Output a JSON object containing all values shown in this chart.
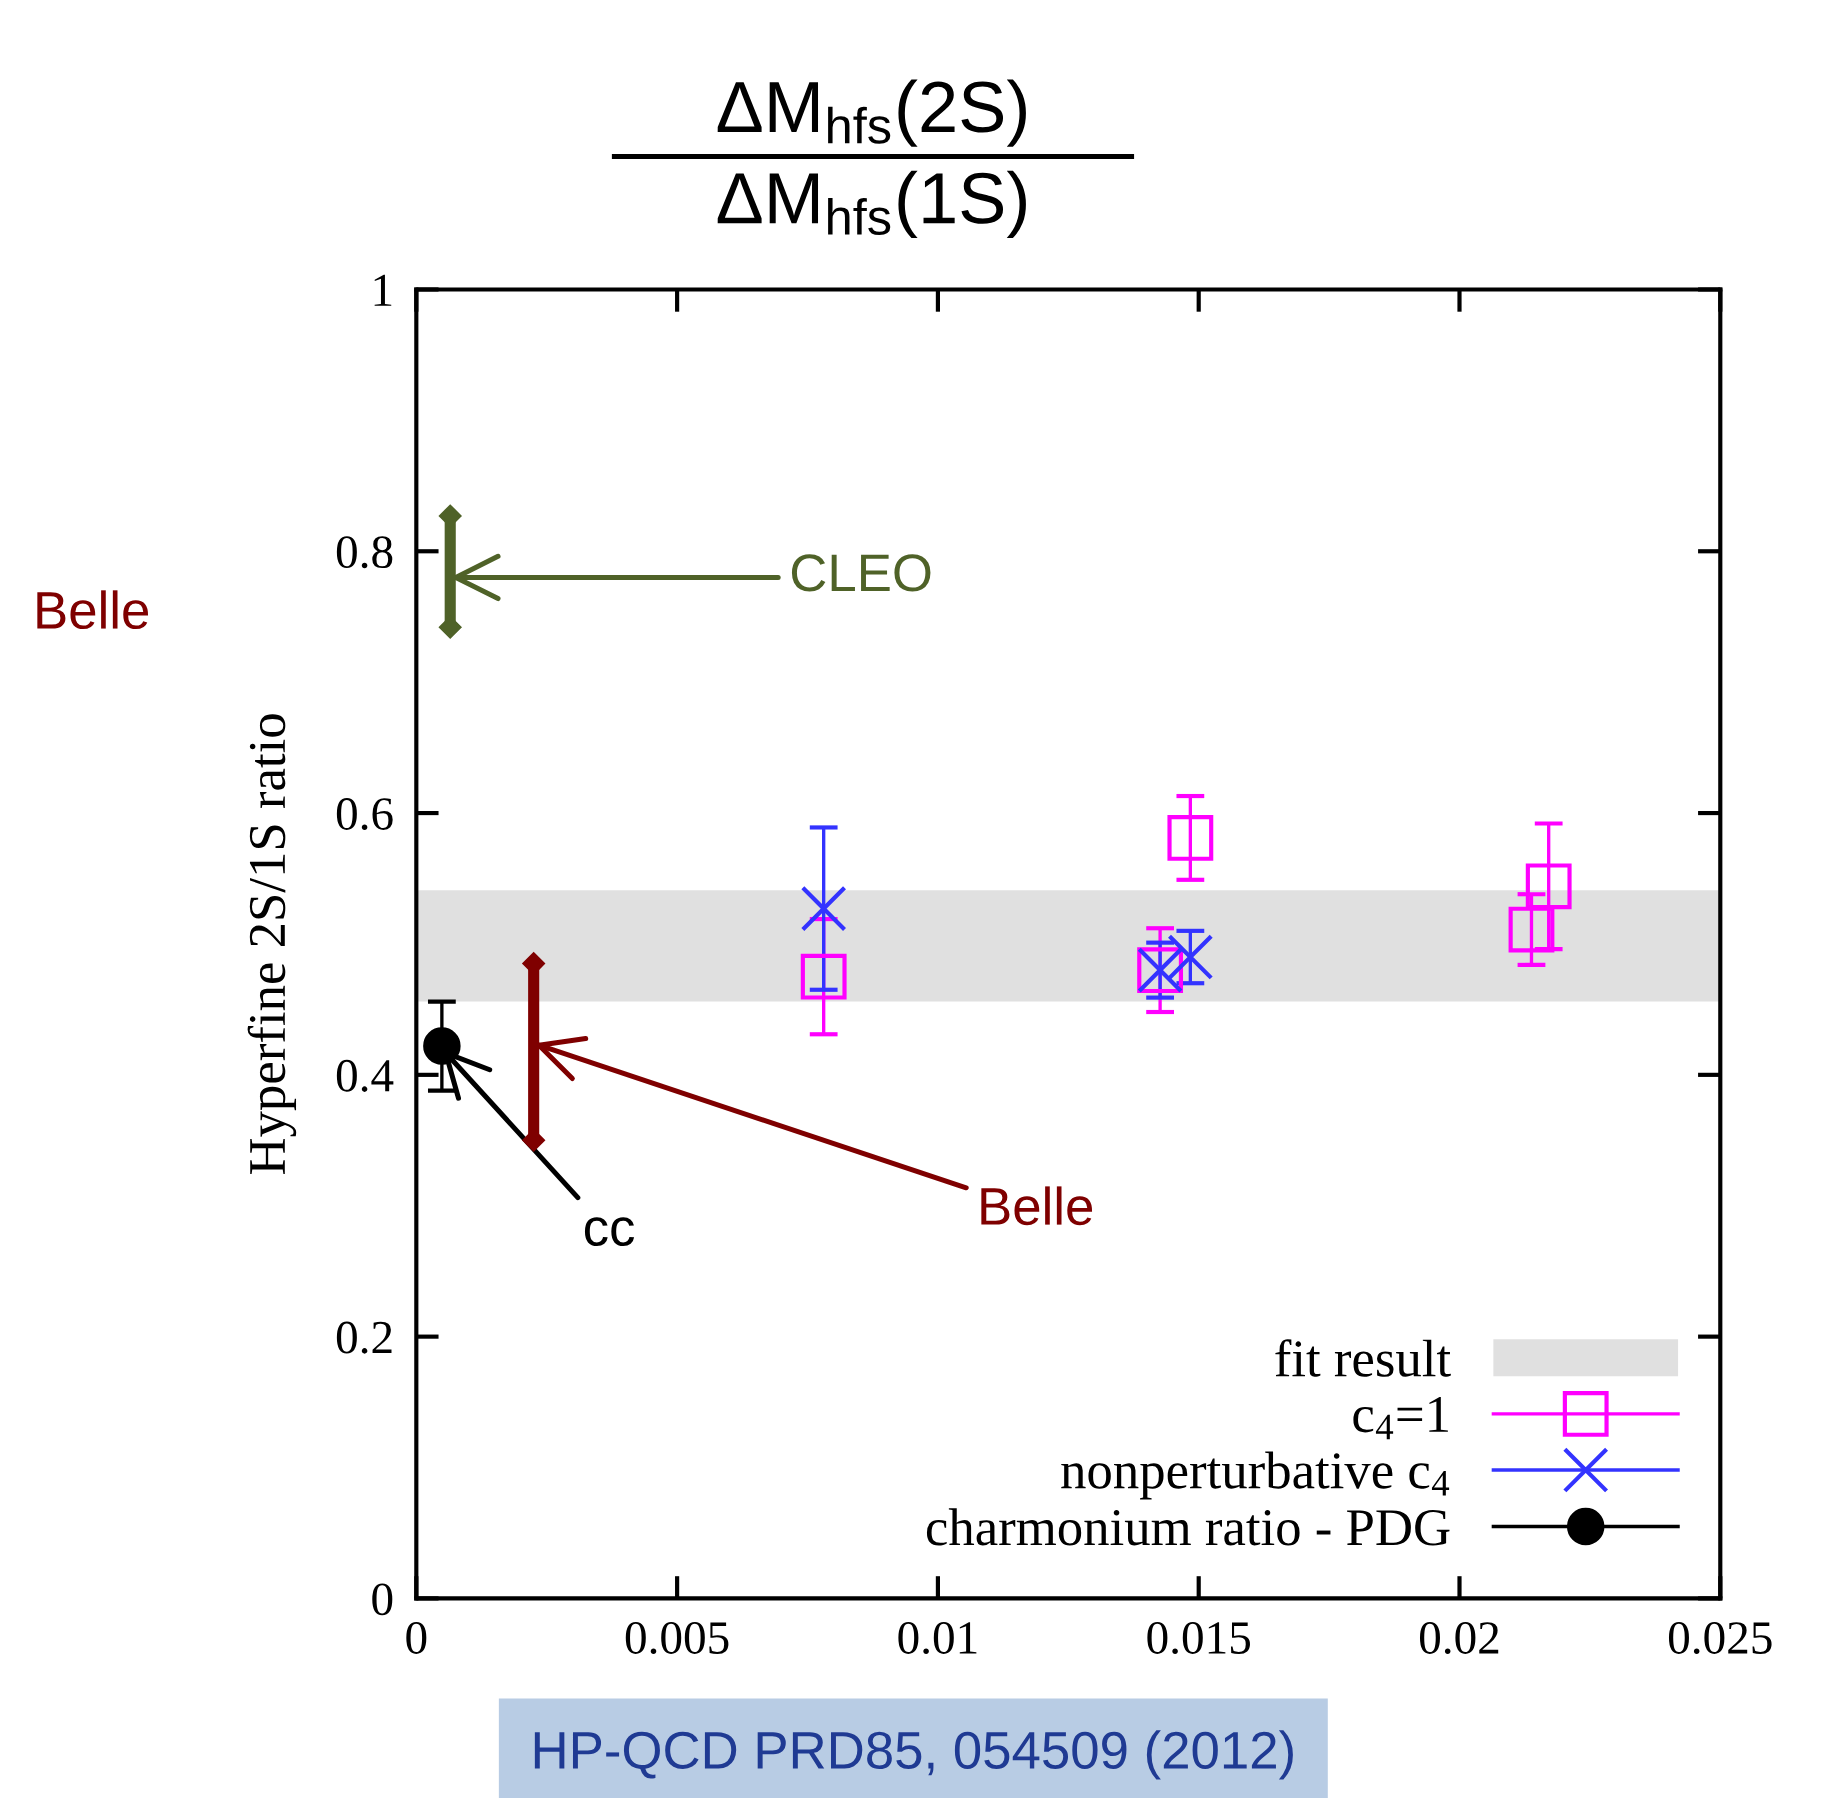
{
  "chart_data": {
    "type": "scatter",
    "title": "ΔM$_{hfs}$(2S)\nΔM$_{hfs}$(1S)",
    "ylabel": "Hyperfine 2S/1S ratio",
    "xlim": [
      0,
      0.025
    ],
    "xticks": [
      0,
      0.005,
      0.01,
      0.015,
      0.02,
      0.025
    ],
    "ylim": [
      0,
      1
    ],
    "yticks": [
      0,
      0.2,
      0.4,
      0.6,
      0.8,
      1
    ],
    "grid": false,
    "legend": "bottom right",
    "bands": [
      {
        "axis": "y",
        "from": 0.456,
        "to": 0.541,
        "label": "fit result",
        "color": "#e0e0e0"
      }
    ],
    "series": [
      {
        "name": "c$_{4}$=1",
        "color": "#ff00ff",
        "marker": "square",
        "x": [
          0.00781,
          0.01426,
          0.01484,
          0.02138,
          0.02171
        ],
        "values": [
          0.475,
          0.48,
          0.581,
          0.511,
          0.544
        ],
        "errors": [
          0.044,
          0.032,
          0.032,
          0.027,
          0.048
        ]
      },
      {
        "name": "nonperturbative c$_{4}$",
        "color": "#3333ff",
        "marker": "cross",
        "x": [
          0.00781,
          0.01426,
          0.01484
        ],
        "values": [
          0.527,
          0.48,
          0.49
        ],
        "errors": [
          0.062,
          0.021,
          0.02
        ]
      },
      {
        "name": "charmonium ratio - PDG",
        "color": "#000000",
        "marker": "circle",
        "x": [
          0.00049
        ],
        "values": [
          0.422
        ],
        "errors": [
          0.034
        ]
      },
      {
        "type": "line",
        "color": "#4f6228",
        "marker": "diamond",
        "x": [
          0.00065,
          0.00065
        ],
        "values": [
          0.742,
          0.827
        ]
      },
      {
        "type": "line",
        "color": "#7f0000",
        "marker": "diamond",
        "x": [
          0.00225,
          0.00225
        ],
        "values": [
          0.35,
          0.485
        ]
      }
    ],
    "annotations": [
      {
        "text": "CLEO",
        "x": 0.00065,
        "y": 0.78
      },
      {
        "text": "Belle",
        "x": 0.00225,
        "y": 0.424
      },
      {
        "text": "cc",
        "x": 0.00049,
        "y": 0.42
      },
      "Belle",
      "HP-QCD PRD85, 054509 (2012)"
    ]
  }
}
